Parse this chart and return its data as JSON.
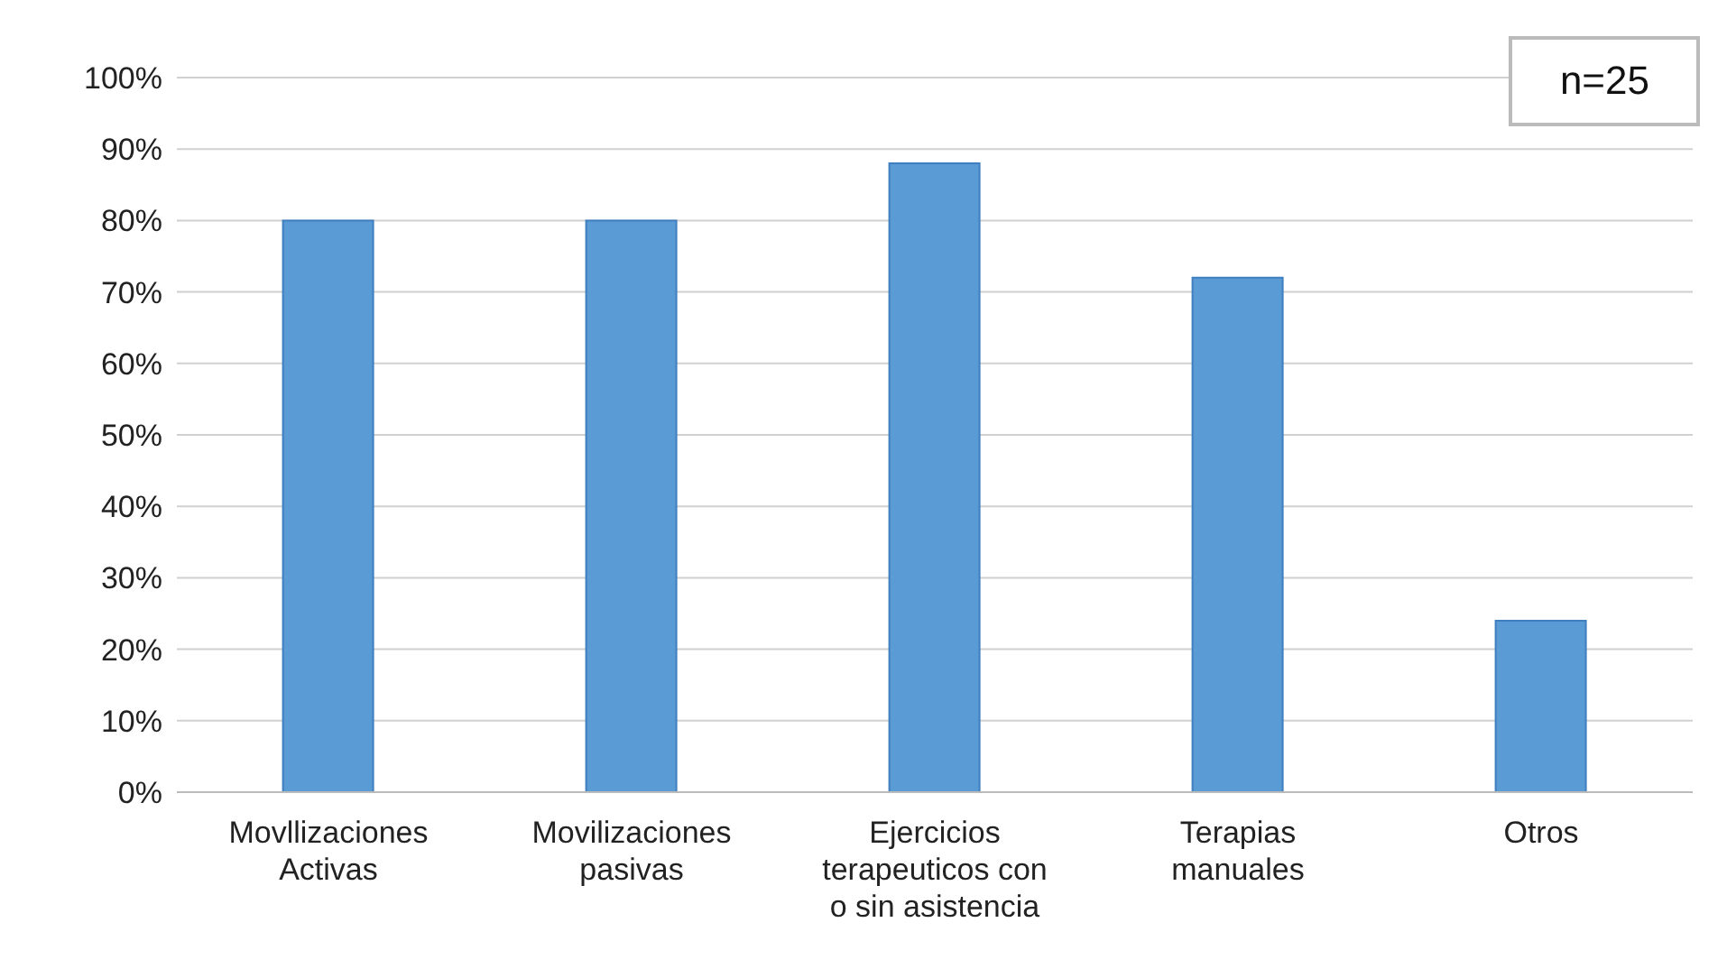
{
  "chart_data": {
    "type": "bar",
    "categories": [
      "Movllizaciones Activas",
      "Movilizaciones pasivas",
      "Ejercicios terapeuticos con o sin asistencia",
      "Terapias manuales",
      "Otros"
    ],
    "values": [
      80,
      80,
      88,
      72,
      24
    ],
    "color": "#5b9bd5",
    "ylim": [
      0,
      100
    ],
    "yticks": [
      {
        "value": 0,
        "label": "0%"
      },
      {
        "value": 10,
        "label": "10%"
      },
      {
        "value": 20,
        "label": "20%"
      },
      {
        "value": 30,
        "label": "30%"
      },
      {
        "value": 40,
        "label": "40%"
      },
      {
        "value": 50,
        "label": "50%"
      },
      {
        "value": 60,
        "label": "60%"
      },
      {
        "value": 70,
        "label": "70%"
      },
      {
        "value": 80,
        "label": "80%"
      },
      {
        "value": 90,
        "label": "90%"
      },
      {
        "value": 100,
        "label": "100%"
      }
    ],
    "grid": "y",
    "annotations": [
      "n=25"
    ]
  }
}
